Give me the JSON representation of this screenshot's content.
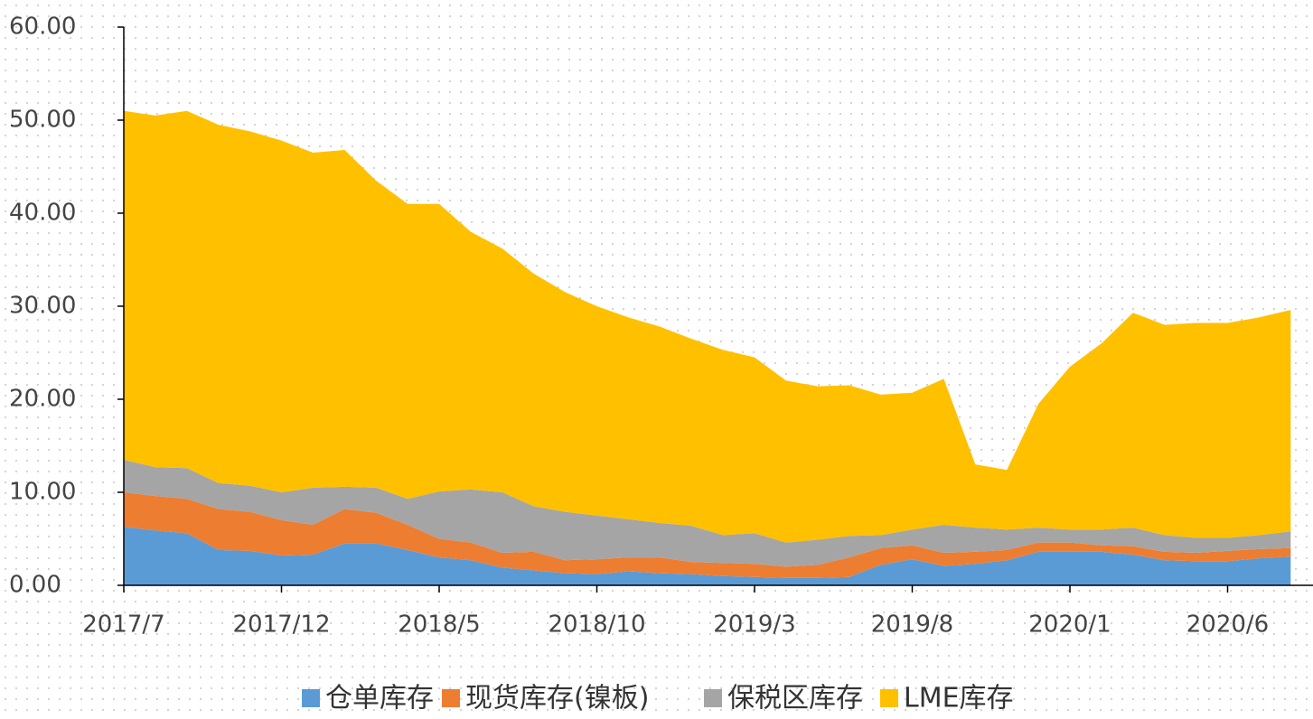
{
  "chart_data": {
    "type": "stacked_area",
    "categories": [
      "2017/7",
      null,
      null,
      null,
      null,
      "2017/12",
      null,
      null,
      null,
      null,
      "2018/5",
      null,
      null,
      null,
      null,
      "2018/10",
      null,
      null,
      null,
      null,
      "2019/3",
      null,
      null,
      null,
      null,
      "2019/8",
      null,
      null,
      null,
      null,
      "2020/1",
      null,
      null,
      null,
      null,
      "2020/6",
      null,
      null
    ],
    "series": [
      {
        "name": "仓单库存",
        "color": "#5b9bd5",
        "values": [
          6.3,
          5.9,
          5.6,
          3.8,
          3.7,
          3.2,
          3.3,
          4.5,
          4.5,
          3.8,
          3.0,
          2.7,
          1.9,
          1.6,
          1.3,
          1.2,
          1.5,
          1.3,
          1.2,
          1.0,
          0.9,
          0.8,
          0.8,
          0.9,
          2.2,
          2.8,
          2.1,
          2.3,
          2.7,
          3.6,
          3.6,
          3.6,
          3.3,
          2.7,
          2.6,
          2.6,
          2.9,
          3.1
        ]
      },
      {
        "name": "现货库存(镍板)",
        "color": "#ed7d31",
        "values": [
          3.7,
          3.7,
          3.7,
          4.4,
          4.2,
          3.8,
          3.2,
          3.7,
          3.3,
          2.7,
          2.0,
          1.9,
          1.6,
          2.0,
          1.4,
          1.6,
          1.5,
          1.7,
          1.3,
          1.4,
          1.4,
          1.2,
          1.4,
          2.1,
          1.8,
          1.5,
          1.4,
          1.3,
          1.1,
          1.0,
          1.0,
          0.7,
          0.9,
          0.9,
          0.9,
          1.1,
          1.0,
          0.9
        ]
      },
      {
        "name": "保税区库存",
        "color": "#a5a5a5",
        "values": [
          3.5,
          3.1,
          3.3,
          2.8,
          2.8,
          3.0,
          4.0,
          2.4,
          2.7,
          2.8,
          5.1,
          5.7,
          6.5,
          4.9,
          5.2,
          4.7,
          4.1,
          3.7,
          3.9,
          3.0,
          3.3,
          2.6,
          2.7,
          2.3,
          1.4,
          1.7,
          3.0,
          2.6,
          2.2,
          1.6,
          1.4,
          1.7,
          2.0,
          1.8,
          1.6,
          1.4,
          1.5,
          1.8
        ]
      },
      {
        "name": "LME库存",
        "color": "#ffc000",
        "values": [
          37.5,
          37.8,
          38.4,
          38.5,
          38.1,
          37.8,
          36.0,
          36.2,
          33.0,
          31.7,
          30.9,
          27.7,
          26.2,
          25.0,
          23.6,
          22.5,
          21.7,
          21.1,
          20.1,
          19.9,
          18.9,
          17.4,
          16.5,
          16.2,
          15.1,
          14.7,
          15.7,
          6.8,
          6.4,
          13.3,
          17.5,
          20.0,
          23.1,
          22.6,
          23.1,
          23.1,
          23.4,
          23.8
        ]
      }
    ],
    "ylim": [
      0,
      60
    ],
    "yticks": [
      {
        "value": 0,
        "label": "0.00"
      },
      {
        "value": 10,
        "label": "10.00"
      },
      {
        "value": 20,
        "label": "20.00"
      },
      {
        "value": 30,
        "label": "30.00"
      },
      {
        "value": 40,
        "label": "40.00"
      },
      {
        "value": 50,
        "label": "50.00"
      },
      {
        "value": 60,
        "label": "60.00"
      }
    ],
    "legend": "bottom"
  }
}
